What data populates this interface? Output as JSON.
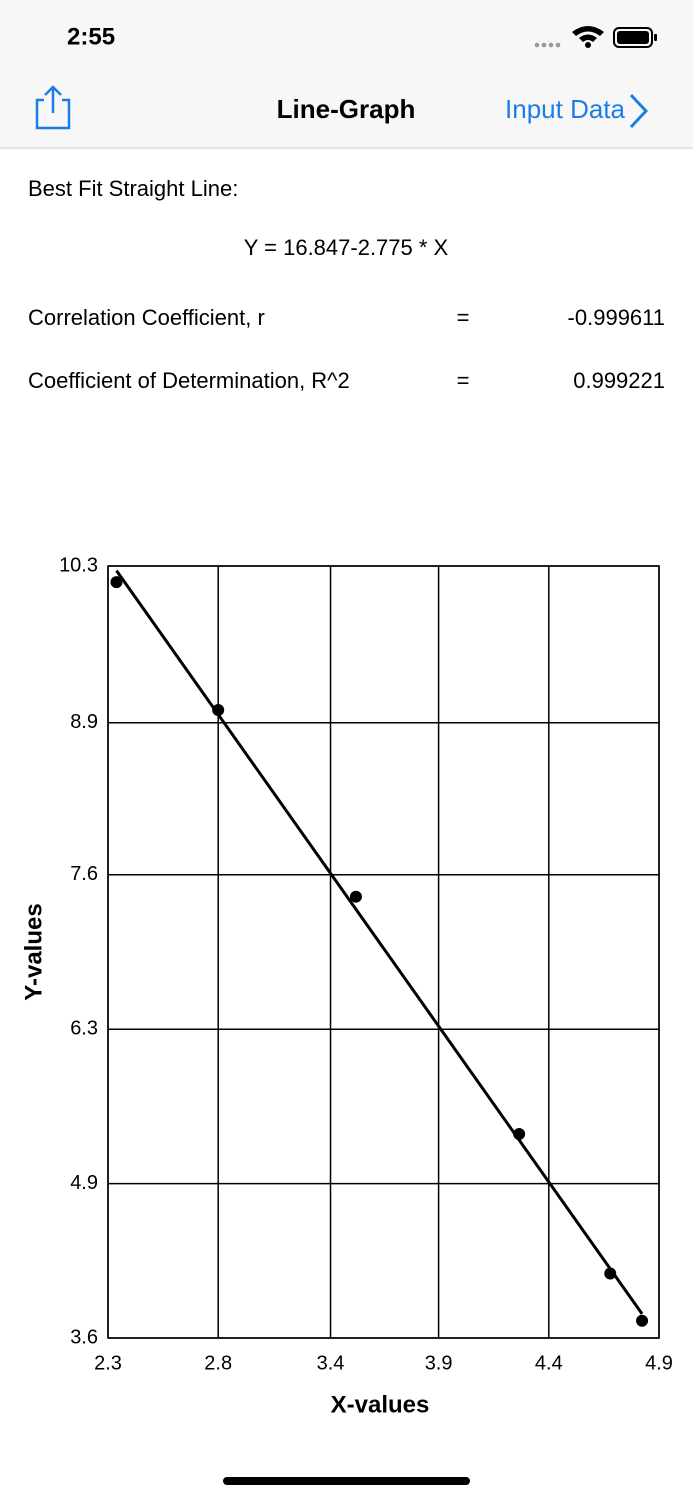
{
  "status_bar": {
    "time": "2:55"
  },
  "nav": {
    "title": "Line-Graph",
    "action": "Input Data"
  },
  "results": {
    "heading": "Best Fit Straight Line:",
    "equation": "Y = 16.847-2.775 * X",
    "rows": [
      [
        "Correlation Coefficient, r",
        "=",
        "-0.999611"
      ],
      [
        "Coefficient of Determination, R^2",
        "=",
        "0.999221"
      ]
    ]
  },
  "chart_data": {
    "type": "scatter",
    "x_label": "X-values",
    "y_label": "Y-values",
    "x": [
      2.34,
      2.82,
      3.47,
      4.24,
      4.67,
      4.82
    ],
    "values": [
      10.16,
      9.05,
      7.43,
      5.37,
      4.16,
      3.75
    ],
    "color": "#000000",
    "grid": true,
    "xlim": [
      2.3,
      4.9
    ],
    "xticks": [
      2.3,
      {
        "value": 2.82,
        "label": "2.8"
      },
      {
        "value": 3.35,
        "label": "3.4"
      },
      {
        "value": 3.86,
        "label": "3.9"
      },
      {
        "value": 4.38,
        "label": "4.4"
      },
      4.9
    ],
    "ylim": [
      3.6,
      10.3
    ],
    "yticks": [
      3.6,
      {
        "value": 4.94,
        "label": "4.9"
      },
      {
        "value": 6.28,
        "label": "6.3"
      },
      {
        "value": 7.62,
        "label": "7.6"
      },
      {
        "value": 8.94,
        "label": "8.9"
      },
      10.3
    ]
  }
}
